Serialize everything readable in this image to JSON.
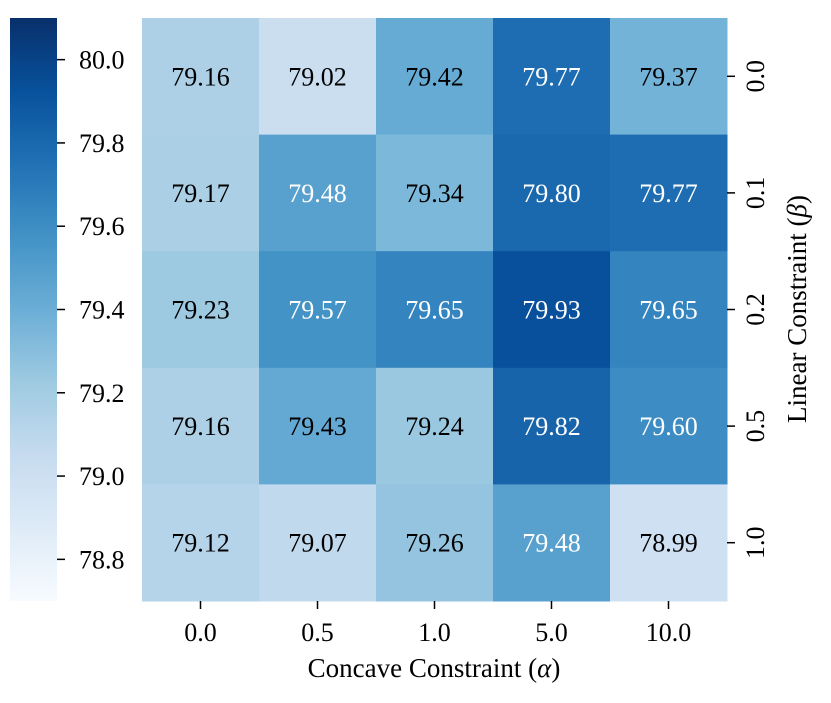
{
  "chart_data": {
    "type": "heatmap",
    "title": "",
    "xlabel_prefix": "Concave Constraint (",
    "xlabel_symbol": "α",
    "xlabel_suffix": ")",
    "ylabel_prefix": "Linear Constraint (",
    "ylabel_symbol": "β",
    "ylabel_suffix": ")",
    "x_categories": [
      "0.0",
      "0.5",
      "1.0",
      "5.0",
      "10.0"
    ],
    "y_categories": [
      "0.0",
      "0.1",
      "0.2",
      "0.5",
      "1.0"
    ],
    "values": [
      [
        79.16,
        79.02,
        79.42,
        79.77,
        79.37
      ],
      [
        79.17,
        79.48,
        79.34,
        79.8,
        79.77
      ],
      [
        79.23,
        79.57,
        79.65,
        79.93,
        79.65
      ],
      [
        79.16,
        79.43,
        79.24,
        79.82,
        79.6
      ],
      [
        79.12,
        79.07,
        79.26,
        79.48,
        78.99
      ]
    ],
    "labels": [
      [
        "79.16",
        "79.02",
        "79.42",
        "79.77",
        "79.37"
      ],
      [
        "79.17",
        "79.48",
        "79.34",
        "79.80",
        "79.77"
      ],
      [
        "79.23",
        "79.57",
        "79.65",
        "79.93",
        "79.65"
      ],
      [
        "79.16",
        "79.43",
        "79.24",
        "79.82",
        "79.60"
      ],
      [
        "79.12",
        "79.07",
        "79.26",
        "79.48",
        "78.99"
      ]
    ],
    "colormap": "Blues",
    "vmin": 78.7,
    "vmax": 80.1,
    "colorbar_ticks": [
      80.0,
      79.8,
      79.6,
      79.4,
      79.2,
      79.0,
      78.8
    ],
    "colorbar_tick_labels": [
      "80.0",
      "79.8",
      "79.6",
      "79.4",
      "79.2",
      "79.0",
      "78.8"
    ],
    "colorbar_position": "left",
    "y_axis_position": "right"
  }
}
